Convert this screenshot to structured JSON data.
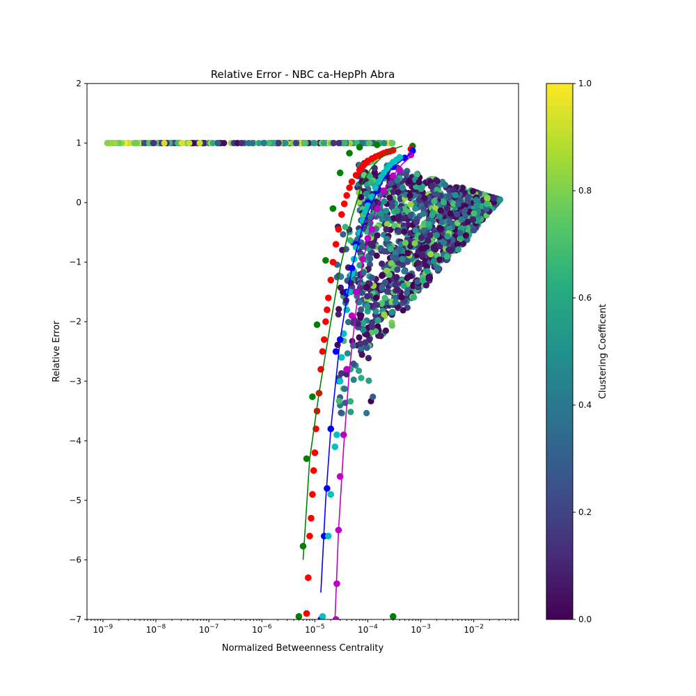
{
  "chart_data": {
    "type": "scatter",
    "title": "Relative Error - NBC ca-HepPh Abra",
    "xlabel": "Normalized Betweenness Centrality",
    "ylabel": "Relative Error",
    "x_scale": "log",
    "xlim": [
      5e-10,
      0.07
    ],
    "ylim": [
      -7,
      2
    ],
    "x_ticks": [
      {
        "base": "10",
        "exp": "−9",
        "value": 1e-09
      },
      {
        "base": "10",
        "exp": "−8",
        "value": 1e-08
      },
      {
        "base": "10",
        "exp": "−7",
        "value": 1e-07
      },
      {
        "base": "10",
        "exp": "−6",
        "value": 1e-06
      },
      {
        "base": "10",
        "exp": "−5",
        "value": 1e-05
      },
      {
        "base": "10",
        "exp": "−4",
        "value": 0.0001
      },
      {
        "base": "10",
        "exp": "−3",
        "value": 0.001
      },
      {
        "base": "10",
        "exp": "−2",
        "value": 0.01
      }
    ],
    "y_ticks": [
      {
        "label": "2",
        "value": 2
      },
      {
        "label": "1",
        "value": 1
      },
      {
        "label": "0",
        "value": 0
      },
      {
        "label": "−1",
        "value": -1
      },
      {
        "label": "−2",
        "value": -2
      },
      {
        "label": "−3",
        "value": -3
      },
      {
        "label": "−4",
        "value": -4
      },
      {
        "label": "−5",
        "value": -5
      },
      {
        "label": "−6",
        "value": -6
      },
      {
        "label": "−7",
        "value": -7
      }
    ],
    "grid": false,
    "colorbar": {
      "label": "Clustering Coefficent",
      "colormap": [
        "#440154",
        "#472d7b",
        "#3b528b",
        "#2c728e",
        "#21918c",
        "#28ae80",
        "#5ec962",
        "#addc30",
        "#fde725"
      ],
      "range": [
        0,
        1
      ],
      "ticks": [
        {
          "label": "0.0",
          "value": 0.0
        },
        {
          "label": "0.2",
          "value": 0.2
        },
        {
          "label": "0.4",
          "value": 0.4
        },
        {
          "label": "0.6",
          "value": 0.6
        },
        {
          "label": "0.8",
          "value": 0.8
        },
        {
          "label": "1.0",
          "value": 1.0
        }
      ]
    },
    "curves": [
      {
        "color": "#008000",
        "x": [
          6e-06,
          8e-06,
          1.2e-05,
          2e-05,
          3e-05,
          5e-05,
          8e-05,
          0.00012,
          0.0002,
          0.0003,
          0.00045
        ],
        "y": [
          -6.0,
          -4.3,
          -3.2,
          -2.0,
          -1.1,
          -0.25,
          0.35,
          0.6,
          0.8,
          0.9,
          0.95
        ]
      },
      {
        "color": "#0000ff",
        "x": [
          1.3e-05,
          1.6e-05,
          2e-05,
          3e-05,
          5e-05,
          8e-05,
          0.00012,
          0.0002,
          0.0003,
          0.0005,
          0.0007
        ],
        "y": [
          -6.55,
          -5.0,
          -3.8,
          -2.3,
          -1.1,
          -0.4,
          0.0,
          0.4,
          0.6,
          0.75,
          0.85
        ]
      },
      {
        "color": "#c000c0",
        "x": [
          2.4e-05,
          2.8e-05,
          3.5e-05,
          4.5e-05,
          6e-05,
          8e-05,
          0.00012,
          0.0002,
          0.0003,
          0.00045,
          0.0007
        ],
        "y": [
          -7.0,
          -5.5,
          -4.1,
          -2.8,
          -1.8,
          -1.0,
          -0.3,
          0.2,
          0.45,
          0.65,
          0.8
        ]
      }
    ],
    "series": [
      {
        "color": "#008000",
        "x": [
          5e-06,
          6e-06,
          7e-06,
          9e-06,
          1.1e-05,
          1.6e-05,
          2.2e-05,
          3e-05,
          4.5e-05,
          7e-05,
          0.00015,
          0.0003,
          0.0007
        ],
        "y": [
          -6.95,
          -5.77,
          -4.3,
          -3.26,
          -2.05,
          -0.97,
          -0.1,
          0.5,
          0.83,
          0.93,
          0.97,
          -6.95,
          0.95
        ]
      },
      {
        "color": "#ff0000",
        "x": [
          7e-06,
          7.5e-06,
          8e-06,
          8.5e-06,
          9e-06,
          9.5e-06,
          1e-05,
          1.05e-05,
          1.1e-05,
          1.2e-05,
          1.3e-05,
          1.4e-05,
          1.5e-05,
          1.6e-05,
          1.7e-05,
          1.8e-05,
          2e-05,
          2.2e-05,
          2.5e-05,
          2.8e-05,
          3.2e-05,
          3.6e-05,
          4e-05,
          4.5e-05,
          5e-05,
          6e-05,
          7e-05,
          8e-05,
          9e-05,
          0.0001,
          0.00012,
          0.00014,
          0.00016,
          0.00018,
          0.0002,
          0.00023,
          0.00026,
          0.0003,
          0.00065
        ],
        "y": [
          -6.9,
          -6.3,
          -5.6,
          -5.3,
          -4.9,
          -4.5,
          -4.2,
          -3.8,
          -3.5,
          -3.2,
          -2.8,
          -2.5,
          -2.3,
          -2.0,
          -1.8,
          -1.6,
          -1.3,
          -1.0,
          -0.7,
          -0.45,
          -0.2,
          -0.02,
          0.12,
          0.25,
          0.35,
          0.46,
          0.55,
          0.61,
          0.66,
          0.7,
          0.74,
          0.77,
          0.79,
          0.81,
          0.83,
          0.85,
          0.86,
          0.88,
          0.9
        ]
      },
      {
        "color": "#0000ff",
        "x": [
          1.3e-05,
          1.5e-05,
          1.7e-05,
          2e-05,
          2.5e-05,
          3e-05,
          4e-05,
          5e-05,
          6e-05,
          8e-05,
          0.0001,
          0.00015,
          0.0002,
          0.0003,
          0.0005,
          0.0007
        ],
        "y": [
          -7.0,
          -5.6,
          -4.8,
          -3.8,
          -2.5,
          -2.3,
          -1.5,
          -1.1,
          -0.7,
          -0.3,
          0.0,
          0.2,
          0.45,
          0.6,
          0.75,
          0.87
        ]
      },
      {
        "color": "#00c0c0",
        "x": [
          1.4e-05,
          1.8e-05,
          2e-05,
          2.4e-05,
          2.6e-05,
          3e-05,
          3.2e-05,
          3.5e-05,
          4e-05,
          4.5e-05,
          5e-05,
          5.5e-05,
          6e-05,
          7e-05,
          8e-05,
          9e-05,
          0.0001,
          0.00012,
          0.00014,
          0.00016,
          0.00018,
          0.0002,
          0.00023,
          0.00026,
          0.0003,
          0.00035,
          0.0004
        ],
        "y": [
          -6.95,
          -5.6,
          -4.9,
          -4.1,
          -3.9,
          -3.0,
          -2.6,
          -2.2,
          -1.8,
          -1.5,
          -1.2,
          -0.95,
          -0.75,
          -0.5,
          -0.3,
          -0.15,
          -0.05,
          0.1,
          0.25,
          0.35,
          0.43,
          0.5,
          0.57,
          0.63,
          0.68,
          0.72,
          0.76
        ]
      },
      {
        "color": "#c000c0",
        "x": [
          2.5e-05,
          2.6e-05,
          2.8e-05,
          3e-05,
          3.5e-05,
          4e-05,
          5e-05,
          6e-05,
          8e-05,
          0.0001,
          0.00012,
          0.00015,
          0.0002,
          0.0003,
          0.0004,
          0.00065
        ],
        "y": [
          -7.0,
          -6.4,
          -5.5,
          -4.6,
          -3.9,
          -2.8,
          -1.9,
          -1.5,
          -0.95,
          -0.6,
          -0.45,
          -0.1,
          0.2,
          0.45,
          0.55,
          0.8
        ]
      }
    ],
    "scatter_summary": [
      {
        "x": [
          1.2e-09,
          0.0003
        ],
        "y": 1.0,
        "note_color": "#88cc44"
      }
    ]
  }
}
